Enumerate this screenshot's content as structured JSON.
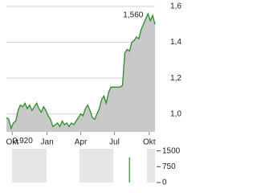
{
  "chart_data": [
    {
      "type": "area-line",
      "color": "#2e8b2e",
      "fill": "#c8c8c8",
      "values": [
        0.98,
        0.97,
        0.92,
        0.95,
        0.96,
        1.02,
        1.05,
        1.04,
        1.06,
        1.03,
        1.05,
        1.02,
        1.04,
        1.06,
        1.03,
        1.01,
        1.04,
        1.02,
        0.99,
        0.97,
        0.93,
        0.94,
        0.95,
        0.93,
        0.96,
        0.94,
        0.95,
        0.93,
        0.95,
        0.94,
        0.96,
        0.98,
        1.0,
        0.99,
        1.03,
        1.05,
        1.02,
        0.98,
        0.97,
        1.0,
        1.03,
        1.08,
        1.1,
        1.06,
        1.12,
        1.15,
        1.15,
        1.15,
        1.15,
        1.15,
        1.16,
        1.34,
        1.36,
        1.35,
        1.4,
        1.41,
        1.43,
        1.42,
        1.47,
        1.5,
        1.53,
        1.56,
        1.52,
        1.55,
        1.5
      ],
      "xlim": [
        0,
        64
      ],
      "xticks": [
        {
          "value": 2.5,
          "label": "Okt"
        },
        {
          "value": 17.5,
          "label": "Jan"
        },
        {
          "value": 32,
          "label": "Apr"
        },
        {
          "value": 46.5,
          "label": "Jul"
        },
        {
          "value": 61.5,
          "label": "Okt"
        }
      ],
      "ylim": [
        0.9,
        1.6
      ],
      "yticks": [
        {
          "value": 1.0,
          "label": "1,0"
        },
        {
          "value": 1.2,
          "label": "1,2"
        },
        {
          "value": 1.4,
          "label": "1,4"
        },
        {
          "value": 1.6,
          "label": "1,6"
        }
      ],
      "grid": true,
      "annotations": [
        {
          "index": 61,
          "value": 1.56,
          "label": "1,560"
        },
        {
          "index": 2,
          "value": 0.92,
          "label": "0,920"
        }
      ]
    },
    {
      "type": "bar",
      "color": "#2e8b2e",
      "values": [
        0,
        0,
        0,
        0,
        0,
        0,
        0,
        0,
        0,
        0,
        0,
        0,
        0,
        0,
        0,
        0,
        0,
        0,
        0,
        0,
        0,
        0,
        0,
        0,
        0,
        0,
        0,
        0,
        0,
        0,
        0,
        0,
        0,
        0,
        0,
        0,
        0,
        0,
        0,
        0,
        0,
        0,
        0,
        0,
        0,
        0,
        0,
        0,
        0,
        0,
        0,
        0,
        0,
        1200,
        0,
        0,
        0,
        0,
        0,
        0,
        0,
        0,
        0,
        0,
        0
      ],
      "xlim": [
        0,
        64
      ],
      "ylim": [
        0,
        1600
      ],
      "yticks": [
        0,
        750,
        1500
      ]
    }
  ]
}
